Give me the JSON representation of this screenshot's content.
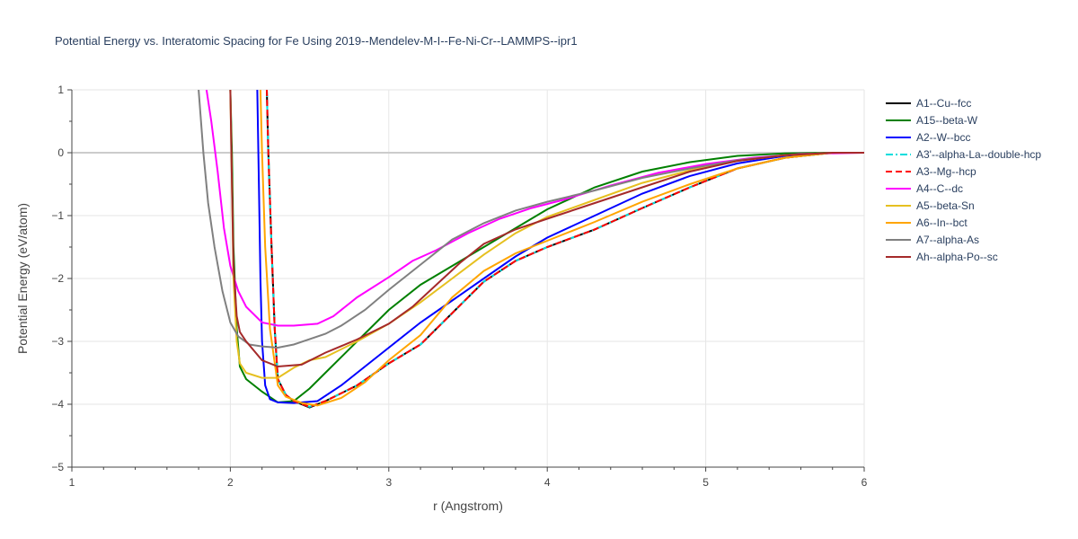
{
  "chart_data": {
    "type": "line",
    "title": "Potential Energy vs. Interatomic Spacing for Fe Using 2019--Mendelev-M-I--Fe-Ni-Cr--LAMMPS--ipr1",
    "xlabel": "r (Angstrom)",
    "ylabel": "Potential Energy (eV/atom)",
    "xlim": [
      1,
      6
    ],
    "ylim": [
      -5,
      1
    ],
    "xticks": [
      1,
      2,
      3,
      4,
      5,
      6
    ],
    "yticks": [
      -5,
      -4,
      -3,
      -2,
      -1,
      0,
      1
    ],
    "grid": true,
    "legend_position": "right",
    "series": [
      {
        "name": "A1--Cu--fcc",
        "color": "#000000",
        "dash": "solid",
        "x": [
          2.23,
          2.24,
          2.26,
          2.28,
          2.3,
          2.35,
          2.4,
          2.5,
          2.6,
          2.8,
          3.0,
          3.2,
          3.4,
          3.6,
          3.8,
          4.0,
          4.3,
          4.6,
          4.9,
          5.2,
          5.5,
          5.8,
          6.0
        ],
        "y": [
          1.0,
          0.0,
          -1.5,
          -2.8,
          -3.6,
          -3.85,
          -3.95,
          -4.05,
          -3.95,
          -3.7,
          -3.35,
          -3.05,
          -2.55,
          -2.05,
          -1.72,
          -1.5,
          -1.22,
          -0.88,
          -0.55,
          -0.25,
          -0.08,
          0.0,
          0.0
        ]
      },
      {
        "name": "A15--beta-W",
        "color": "#008000",
        "dash": "solid",
        "x": [
          2.0,
          2.01,
          2.02,
          2.04,
          2.06,
          2.1,
          2.2,
          2.3,
          2.4,
          2.5,
          2.6,
          2.8,
          3.0,
          3.2,
          3.4,
          3.6,
          3.8,
          4.0,
          4.3,
          4.6,
          4.9,
          5.2,
          5.5,
          5.8,
          6.0
        ],
        "y": [
          1.0,
          0.0,
          -1.5,
          -2.8,
          -3.4,
          -3.6,
          -3.8,
          -3.97,
          -3.95,
          -3.75,
          -3.5,
          -3.0,
          -2.5,
          -2.1,
          -1.8,
          -1.5,
          -1.2,
          -0.9,
          -0.55,
          -0.3,
          -0.15,
          -0.05,
          -0.01,
          0.0,
          0.0
        ]
      },
      {
        "name": "A2--W--bcc",
        "color": "#0000ff",
        "dash": "solid",
        "x": [
          2.17,
          2.18,
          2.19,
          2.2,
          2.22,
          2.25,
          2.3,
          2.4,
          2.55,
          2.7,
          2.85,
          3.0,
          3.2,
          3.4,
          3.6,
          3.8,
          4.0,
          4.3,
          4.6,
          4.9,
          5.2,
          5.5,
          5.8,
          6.0
        ],
        "y": [
          1.0,
          -0.5,
          -2.0,
          -3.0,
          -3.7,
          -3.92,
          -3.97,
          -3.98,
          -3.95,
          -3.7,
          -3.4,
          -3.1,
          -2.7,
          -2.35,
          -2.0,
          -1.65,
          -1.35,
          -1.0,
          -0.65,
          -0.37,
          -0.17,
          -0.05,
          0.0,
          0.0
        ]
      },
      {
        "name": "A3'--alpha-La--double-hcp",
        "color": "#00dddd",
        "dash": "dashdot",
        "x": [
          2.23,
          2.24,
          2.26,
          2.28,
          2.3,
          2.35,
          2.4,
          2.5,
          2.6,
          2.8,
          3.0,
          3.2,
          3.4,
          3.6,
          3.8,
          4.0,
          4.3,
          4.6,
          4.9,
          5.2,
          5.5,
          5.8,
          6.0
        ],
        "y": [
          1.0,
          0.0,
          -1.5,
          -2.8,
          -3.6,
          -3.85,
          -3.95,
          -4.04,
          -3.95,
          -3.7,
          -3.35,
          -3.05,
          -2.55,
          -2.05,
          -1.72,
          -1.5,
          -1.22,
          -0.88,
          -0.55,
          -0.25,
          -0.08,
          0.0,
          0.0
        ]
      },
      {
        "name": "A3--Mg--hcp",
        "color": "#ff0000",
        "dash": "dash",
        "x": [
          2.23,
          2.24,
          2.26,
          2.28,
          2.3,
          2.35,
          2.4,
          2.5,
          2.6,
          2.8,
          3.0,
          3.2,
          3.4,
          3.6,
          3.8,
          4.0,
          4.3,
          4.6,
          4.9,
          5.2,
          5.5,
          5.8,
          6.0
        ],
        "y": [
          1.0,
          0.0,
          -1.5,
          -2.8,
          -3.6,
          -3.85,
          -3.95,
          -4.04,
          -3.95,
          -3.7,
          -3.35,
          -3.05,
          -2.55,
          -2.05,
          -1.72,
          -1.5,
          -1.22,
          -0.88,
          -0.55,
          -0.25,
          -0.08,
          0.0,
          0.0
        ]
      },
      {
        "name": "A4--C--dc",
        "color": "#ff00ff",
        "dash": "solid",
        "x": [
          1.85,
          1.88,
          1.92,
          1.96,
          2.0,
          2.05,
          2.1,
          2.2,
          2.3,
          2.4,
          2.55,
          2.65,
          2.8,
          3.0,
          3.15,
          3.3,
          3.5,
          3.7,
          3.9,
          4.1,
          4.4,
          4.7,
          5.0,
          5.3,
          5.6,
          6.0
        ],
        "y": [
          1.0,
          0.5,
          -0.3,
          -1.2,
          -1.8,
          -2.2,
          -2.45,
          -2.7,
          -2.75,
          -2.75,
          -2.72,
          -2.6,
          -2.3,
          -1.98,
          -1.72,
          -1.55,
          -1.28,
          -1.05,
          -0.88,
          -0.75,
          -0.52,
          -0.32,
          -0.18,
          -0.08,
          -0.02,
          0.0
        ]
      },
      {
        "name": "A5--beta-Sn",
        "color": "#e6c020",
        "dash": "solid",
        "x": [
          2.0,
          2.01,
          2.02,
          2.04,
          2.06,
          2.1,
          2.2,
          2.3,
          2.4,
          2.5,
          2.6,
          2.8,
          3.0,
          3.2,
          3.4,
          3.6,
          3.8,
          4.0,
          4.3,
          4.6,
          4.9,
          5.2,
          5.5,
          5.8,
          6.0
        ],
        "y": [
          1.0,
          -0.5,
          -2.0,
          -3.0,
          -3.35,
          -3.5,
          -3.58,
          -3.58,
          -3.42,
          -3.3,
          -3.25,
          -3.0,
          -2.72,
          -2.38,
          -2.0,
          -1.62,
          -1.28,
          -1.02,
          -0.75,
          -0.48,
          -0.28,
          -0.13,
          -0.04,
          0.0,
          0.0
        ]
      },
      {
        "name": "A6--In--bct",
        "color": "#ffa500",
        "dash": "solid",
        "x": [
          2.19,
          2.2,
          2.22,
          2.25,
          2.3,
          2.35,
          2.45,
          2.55,
          2.7,
          2.85,
          3.0,
          3.2,
          3.4,
          3.6,
          3.8,
          4.0,
          4.3,
          4.6,
          4.9,
          5.2,
          5.5,
          5.8,
          6.0
        ],
        "y": [
          1.0,
          0.0,
          -1.5,
          -2.8,
          -3.7,
          -3.88,
          -3.98,
          -4.02,
          -3.9,
          -3.65,
          -3.3,
          -2.9,
          -2.3,
          -1.88,
          -1.6,
          -1.4,
          -1.1,
          -0.78,
          -0.5,
          -0.25,
          -0.08,
          0.0,
          0.0
        ]
      },
      {
        "name": "A7--alpha-As",
        "color": "#808080",
        "dash": "solid",
        "x": [
          1.8,
          1.83,
          1.86,
          1.9,
          1.95,
          2.0,
          2.05,
          2.12,
          2.2,
          2.3,
          2.4,
          2.6,
          2.7,
          2.85,
          3.0,
          3.2,
          3.4,
          3.6,
          3.8,
          4.0,
          4.3,
          4.6,
          4.9,
          5.2,
          5.5,
          5.8,
          6.0
        ],
        "y": [
          1.0,
          0.0,
          -0.8,
          -1.5,
          -2.2,
          -2.7,
          -2.92,
          -3.05,
          -3.08,
          -3.1,
          -3.05,
          -2.88,
          -2.75,
          -2.5,
          -2.18,
          -1.78,
          -1.38,
          -1.12,
          -0.92,
          -0.78,
          -0.6,
          -0.4,
          -0.25,
          -0.12,
          -0.04,
          0.0,
          0.0
        ]
      },
      {
        "name": "Ah--alpha-Po--sc",
        "color": "#a52a2a",
        "dash": "solid",
        "x": [
          2.0,
          2.01,
          2.02,
          2.04,
          2.06,
          2.1,
          2.2,
          2.3,
          2.45,
          2.6,
          2.8,
          3.0,
          3.15,
          3.3,
          3.45,
          3.6,
          3.8,
          4.0,
          4.3,
          4.6,
          4.9,
          5.2,
          5.5,
          5.8,
          6.0
        ],
        "y": [
          1.0,
          -0.5,
          -1.8,
          -2.6,
          -2.85,
          -3.0,
          -3.3,
          -3.4,
          -3.37,
          -3.18,
          -2.97,
          -2.72,
          -2.45,
          -2.1,
          -1.75,
          -1.45,
          -1.22,
          -1.05,
          -0.8,
          -0.55,
          -0.3,
          -0.13,
          -0.04,
          0.0,
          0.0
        ]
      }
    ]
  }
}
